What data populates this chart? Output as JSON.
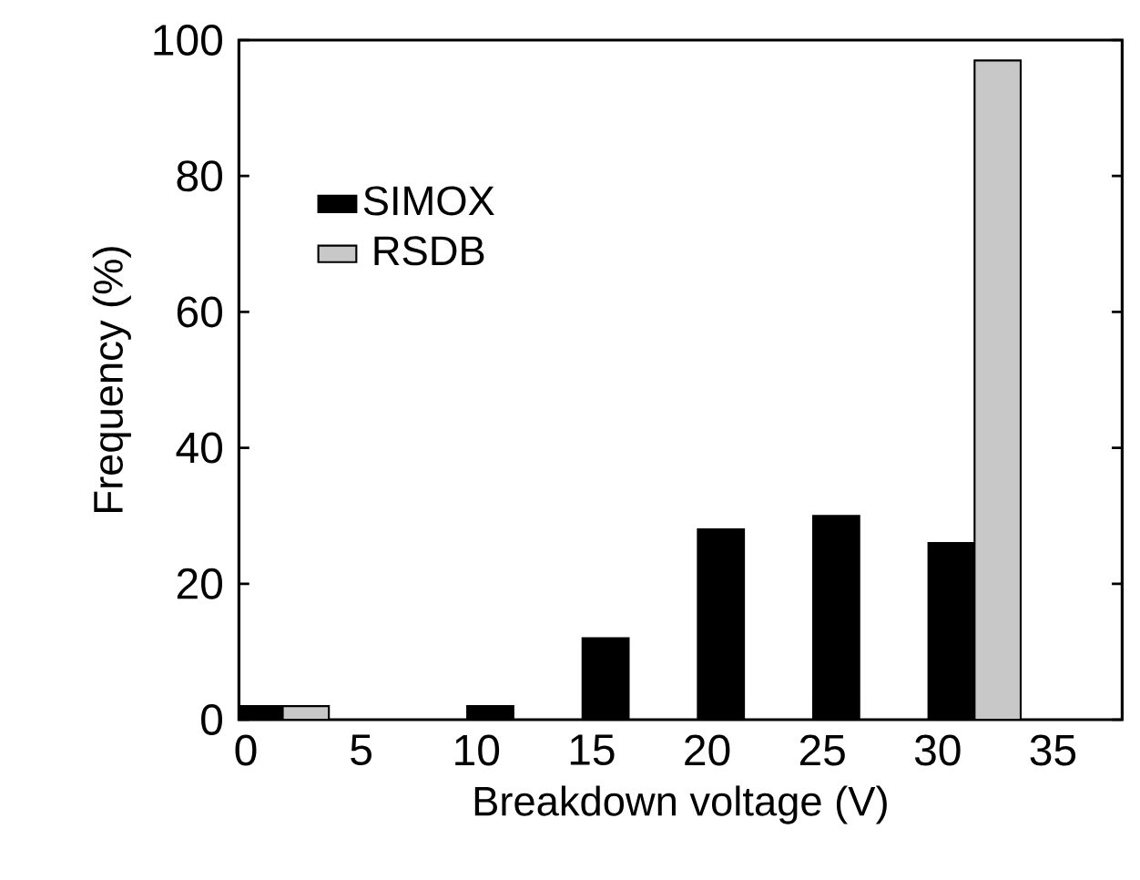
{
  "chart_data": {
    "type": "bar",
    "xlabel": "Breakdown voltage (V)",
    "ylabel": "Frequency (%)",
    "series": [
      {
        "name": "SIMOX",
        "color": "#000000",
        "x": [
          0.6,
          5.6,
          10.6,
          15.6,
          20.6,
          25.6,
          30.6
        ],
        "values": [
          2,
          0,
          2,
          12,
          28,
          30,
          26
        ]
      },
      {
        "name": "RSDB",
        "color": "#c8c8c8",
        "x": [
          2.6,
          7.6,
          12.6,
          17.6,
          22.6,
          27.6,
          32.6
        ],
        "values": [
          2,
          0,
          0,
          0,
          0,
          0,
          97
        ]
      }
    ],
    "xlim": [
      -0.3,
      38
    ],
    "xticks": [
      0,
      5,
      10,
      15,
      20,
      25,
      30,
      35
    ],
    "ylim": [
      0,
      100
    ],
    "yticks": [
      0,
      20,
      40,
      60,
      80,
      100
    ],
    "grid": false,
    "legend": "top left"
  }
}
